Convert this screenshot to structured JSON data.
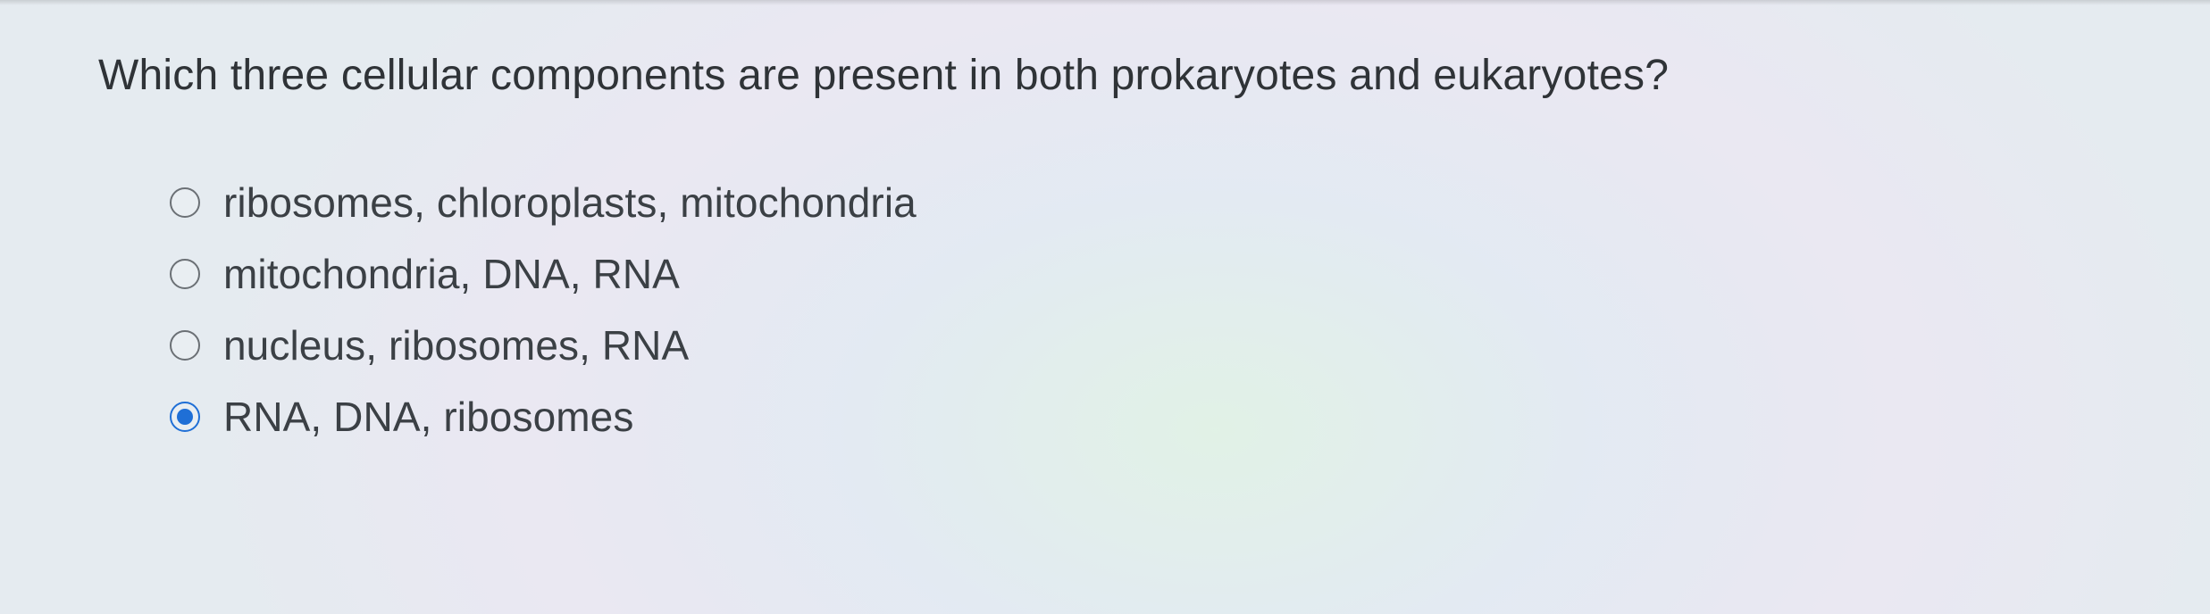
{
  "question": {
    "text": "Which three cellular components are present in both prokaryotes and eukaryotes?"
  },
  "options": [
    {
      "label": "ribosomes, chloroplasts, mitochondria",
      "selected": false
    },
    {
      "label": "mitochondria, DNA, RNA",
      "selected": false
    },
    {
      "label": "nucleus, ribosomes, RNA",
      "selected": false
    },
    {
      "label": "RNA, DNA, ribosomes",
      "selected": true
    }
  ],
  "colors": {
    "text": "#3a3f44",
    "radio_border": "#6b7075",
    "radio_selected": "#1f6fd6",
    "background_base": "#e9edf0"
  },
  "typography": {
    "question_fontsize": 48,
    "option_fontsize": 46,
    "font_family": "Helvetica Neue, Arial, sans-serif"
  }
}
